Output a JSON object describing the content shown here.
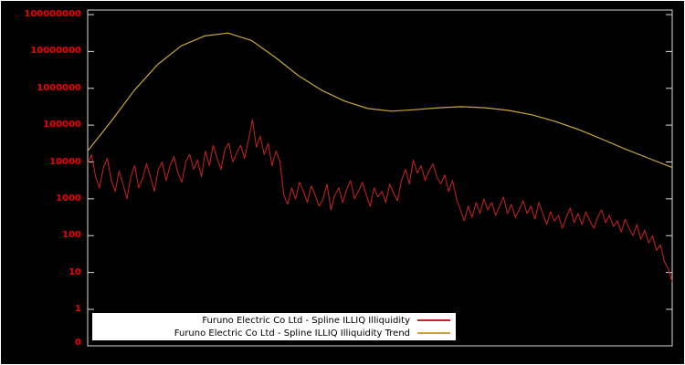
{
  "chart_data": {
    "type": "line",
    "title": "",
    "xlabel": "",
    "ylabel": "",
    "y_scale": "log10",
    "ylim_log10": [
      0,
      8
    ],
    "background_color": "#000000",
    "frame_color": "#d8d8d8",
    "tick_label_color": "#f20000",
    "legend_position": "bottom-center",
    "grid": false,
    "y_axis": {
      "ticks": [
        {
          "label": "100000000",
          "log10": 8
        },
        {
          "label": "10000000",
          "log10": 7
        },
        {
          "label": "1000000",
          "log10": 6
        },
        {
          "label": "100000",
          "log10": 5
        },
        {
          "label": "10000",
          "log10": 4
        },
        {
          "label": "1000",
          "log10": 3
        },
        {
          "label": "100",
          "log10": 2
        },
        {
          "label": "10",
          "log10": 1
        },
        {
          "label": "1",
          "log10": 0
        },
        {
          "label": "0",
          "log10": null
        }
      ]
    },
    "x_axis": {
      "ticks": []
    },
    "series": [
      {
        "id": "illiquidity-line",
        "name": "Furuno Electric Co Ltd - Spline ILLIQ Illiquidity",
        "color": "#cc2222",
        "stroke_width": 1,
        "log10_values": [
          3.95,
          4.2,
          3.6,
          3.3,
          3.85,
          4.1,
          3.5,
          3.2,
          3.75,
          3.4,
          3.0,
          3.6,
          3.9,
          3.3,
          3.55,
          3.95,
          3.6,
          3.2,
          3.8,
          4.0,
          3.5,
          3.9,
          4.15,
          3.7,
          3.45,
          4.0,
          4.2,
          3.8,
          4.05,
          3.6,
          4.3,
          3.9,
          4.45,
          4.1,
          3.8,
          4.35,
          4.5,
          4.0,
          4.25,
          4.45,
          4.1,
          4.6,
          5.15,
          4.4,
          4.7,
          4.2,
          4.5,
          3.9,
          4.3,
          4.0,
          3.1,
          2.85,
          3.3,
          3.0,
          3.45,
          3.2,
          2.9,
          3.35,
          3.1,
          2.8,
          3.0,
          3.4,
          2.7,
          3.1,
          3.3,
          2.9,
          3.25,
          3.5,
          3.0,
          3.2,
          3.45,
          3.1,
          2.8,
          3.3,
          3.05,
          3.2,
          2.9,
          3.4,
          3.15,
          2.95,
          3.5,
          3.8,
          3.4,
          4.05,
          3.7,
          3.9,
          3.5,
          3.75,
          3.95,
          3.6,
          3.4,
          3.65,
          3.2,
          3.5,
          3.0,
          2.7,
          2.4,
          2.8,
          2.5,
          2.9,
          2.6,
          3.0,
          2.7,
          2.9,
          2.55,
          2.8,
          3.05,
          2.6,
          2.85,
          2.5,
          2.7,
          2.95,
          2.6,
          2.8,
          2.45,
          2.9,
          2.6,
          2.3,
          2.65,
          2.4,
          2.55,
          2.2,
          2.5,
          2.75,
          2.35,
          2.6,
          2.3,
          2.65,
          2.4,
          2.2,
          2.5,
          2.7,
          2.35,
          2.55,
          2.25,
          2.4,
          2.1,
          2.45,
          2.2,
          2.0,
          2.3,
          1.9,
          2.15,
          1.8,
          2.0,
          1.6,
          1.75,
          1.3,
          1.1,
          0.75
        ]
      },
      {
        "id": "trend-line",
        "name": "Furuno Electric Co Ltd - Spline ILLIQ Illiquidity Trend",
        "color": "#c9a637",
        "stroke_width": 1.2,
        "log10_values": [
          4.3,
          5.1,
          5.95,
          6.65,
          7.15,
          7.42,
          7.5,
          7.3,
          6.85,
          6.35,
          5.95,
          5.65,
          5.45,
          5.38,
          5.42,
          5.47,
          5.5,
          5.47,
          5.4,
          5.28,
          5.1,
          4.88,
          4.62,
          4.35,
          4.1,
          3.85
        ]
      }
    ]
  }
}
